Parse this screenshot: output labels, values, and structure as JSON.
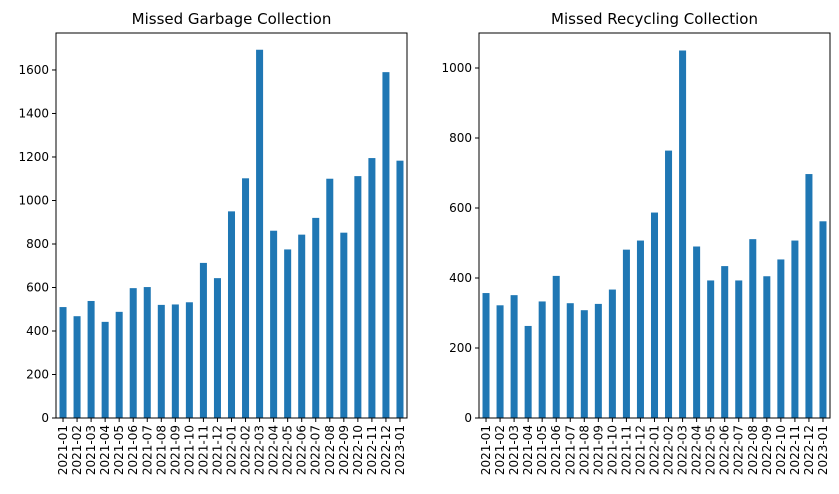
{
  "chart_data": [
    {
      "type": "bar",
      "title": "Missed Garbage Collection",
      "xlabel": "",
      "ylabel": "",
      "categories": [
        "2021-01",
        "2021-02",
        "2021-03",
        "2021-04",
        "2021-05",
        "2021-06",
        "2021-07",
        "2021-08",
        "2021-09",
        "2021-10",
        "2021-11",
        "2021-12",
        "2022-01",
        "2022-02",
        "2022-03",
        "2022-04",
        "2022-05",
        "2022-06",
        "2022-07",
        "2022-08",
        "2022-09",
        "2022-10",
        "2022-11",
        "2022-12",
        "2023-01"
      ],
      "values": [
        510,
        468,
        538,
        442,
        488,
        597,
        602,
        520,
        522,
        532,
        713,
        643,
        950,
        1102,
        1693,
        861,
        775,
        843,
        920,
        1100,
        852,
        1112,
        1195,
        1590,
        1183
      ],
      "ylim": [
        0,
        1770
      ],
      "yticks": [
        0,
        200,
        400,
        600,
        800,
        1000,
        1200,
        1400,
        1600
      ],
      "grid": false,
      "color": "#1f77b4"
    },
    {
      "type": "bar",
      "title": "Missed Recycling Collection",
      "xlabel": "",
      "ylabel": "",
      "categories": [
        "2021-01",
        "2021-02",
        "2021-03",
        "2021-04",
        "2021-05",
        "2021-06",
        "2021-07",
        "2021-08",
        "2021-09",
        "2021-10",
        "2021-11",
        "2021-12",
        "2022-01",
        "2022-02",
        "2022-03",
        "2022-04",
        "2022-05",
        "2022-06",
        "2022-07",
        "2022-08",
        "2022-09",
        "2022-10",
        "2022-11",
        "2022-12",
        "2023-01"
      ],
      "values": [
        357,
        322,
        351,
        263,
        333,
        406,
        328,
        308,
        326,
        367,
        481,
        507,
        587,
        764,
        1050,
        490,
        393,
        434,
        393,
        511,
        405,
        453,
        507,
        697,
        562
      ],
      "ylim": [
        0,
        1100
      ],
      "yticks": [
        0,
        200,
        400,
        600,
        800,
        1000
      ],
      "grid": false,
      "color": "#1f77b4"
    }
  ]
}
